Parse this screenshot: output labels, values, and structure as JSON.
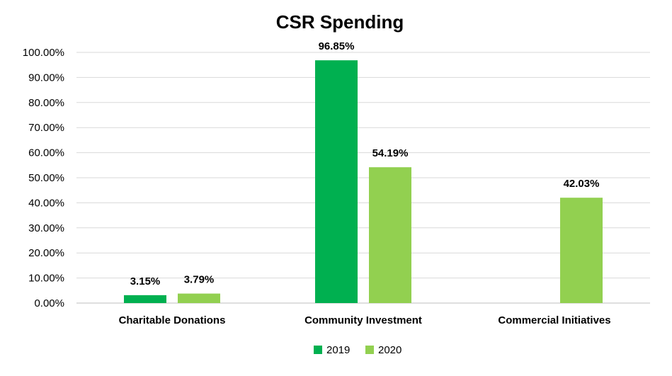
{
  "chart_data": {
    "type": "bar",
    "title": "CSR Spending",
    "categories": [
      "Charitable Donations",
      "Community Investment",
      "Commercial Initiatives"
    ],
    "series": [
      {
        "name": "2019",
        "color": "#00b050",
        "values": [
          3.15,
          96.85,
          null
        ],
        "labels": [
          "3.15%",
          "96.85%",
          null
        ]
      },
      {
        "name": "2020",
        "color": "#92d050",
        "values": [
          3.79,
          54.19,
          42.03
        ],
        "labels": [
          "3.79%",
          "54.19%",
          "42.03%"
        ]
      }
    ],
    "ylim": [
      0,
      100
    ],
    "yticks": [
      0,
      10,
      20,
      30,
      40,
      50,
      60,
      70,
      80,
      90,
      100
    ],
    "ytick_labels": [
      "0.00%",
      "10.00%",
      "20.00%",
      "30.00%",
      "40.00%",
      "50.00%",
      "60.00%",
      "70.00%",
      "80.00%",
      "90.00%",
      "100.00%"
    ],
    "grid": true,
    "legend_position": "bottom"
  }
}
